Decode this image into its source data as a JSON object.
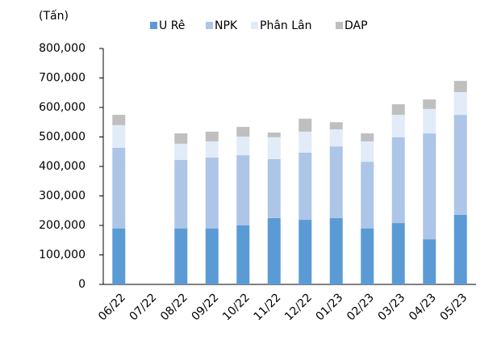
{
  "chart_data": {
    "type": "stacked_bar",
    "y_label": "(Tấn)",
    "categories": [
      "06/22",
      "07/22",
      "08/22",
      "09/22",
      "10/22",
      "11/22",
      "12/22",
      "01/23",
      "02/23",
      "03/23",
      "04/23",
      "05/23"
    ],
    "series": [
      {
        "name": "U Rê",
        "color": "#5b9bd5",
        "values": [
          190000,
          0,
          190000,
          190000,
          200000,
          225000,
          219000,
          225000,
          190000,
          208000,
          153000,
          236000
        ]
      },
      {
        "name": "NPK",
        "color": "#adc5e7",
        "values": [
          273000,
          0,
          232000,
          240000,
          238000,
          200000,
          228000,
          243000,
          226000,
          291000,
          359000,
          339000
        ]
      },
      {
        "name": "Phân Lân",
        "color": "#e2ebf8",
        "values": [
          77000,
          0,
          55000,
          55000,
          63000,
          74000,
          71000,
          58000,
          69000,
          76000,
          83000,
          77000
        ]
      },
      {
        "name": "DAP",
        "color": "#bfbfbf",
        "values": [
          35000,
          0,
          35000,
          33000,
          33000,
          16000,
          44000,
          24000,
          27000,
          36000,
          32000,
          38000
        ]
      }
    ],
    "ylim": [
      0,
      800000
    ],
    "yticks": [
      0,
      {
        "value": 100000,
        "label": "100,000"
      },
      {
        "value": 200000,
        "label": "200,000"
      },
      {
        "value": 300000,
        "label": "300,000"
      },
      {
        "value": 400000,
        "label": "400,000"
      },
      {
        "value": 500000,
        "label": "500,000"
      },
      {
        "value": 600000,
        "label": "600,000"
      },
      {
        "value": 700000,
        "label": "700,000"
      },
      {
        "value": 800000,
        "label": "800,000"
      }
    ],
    "legend": "top"
  }
}
